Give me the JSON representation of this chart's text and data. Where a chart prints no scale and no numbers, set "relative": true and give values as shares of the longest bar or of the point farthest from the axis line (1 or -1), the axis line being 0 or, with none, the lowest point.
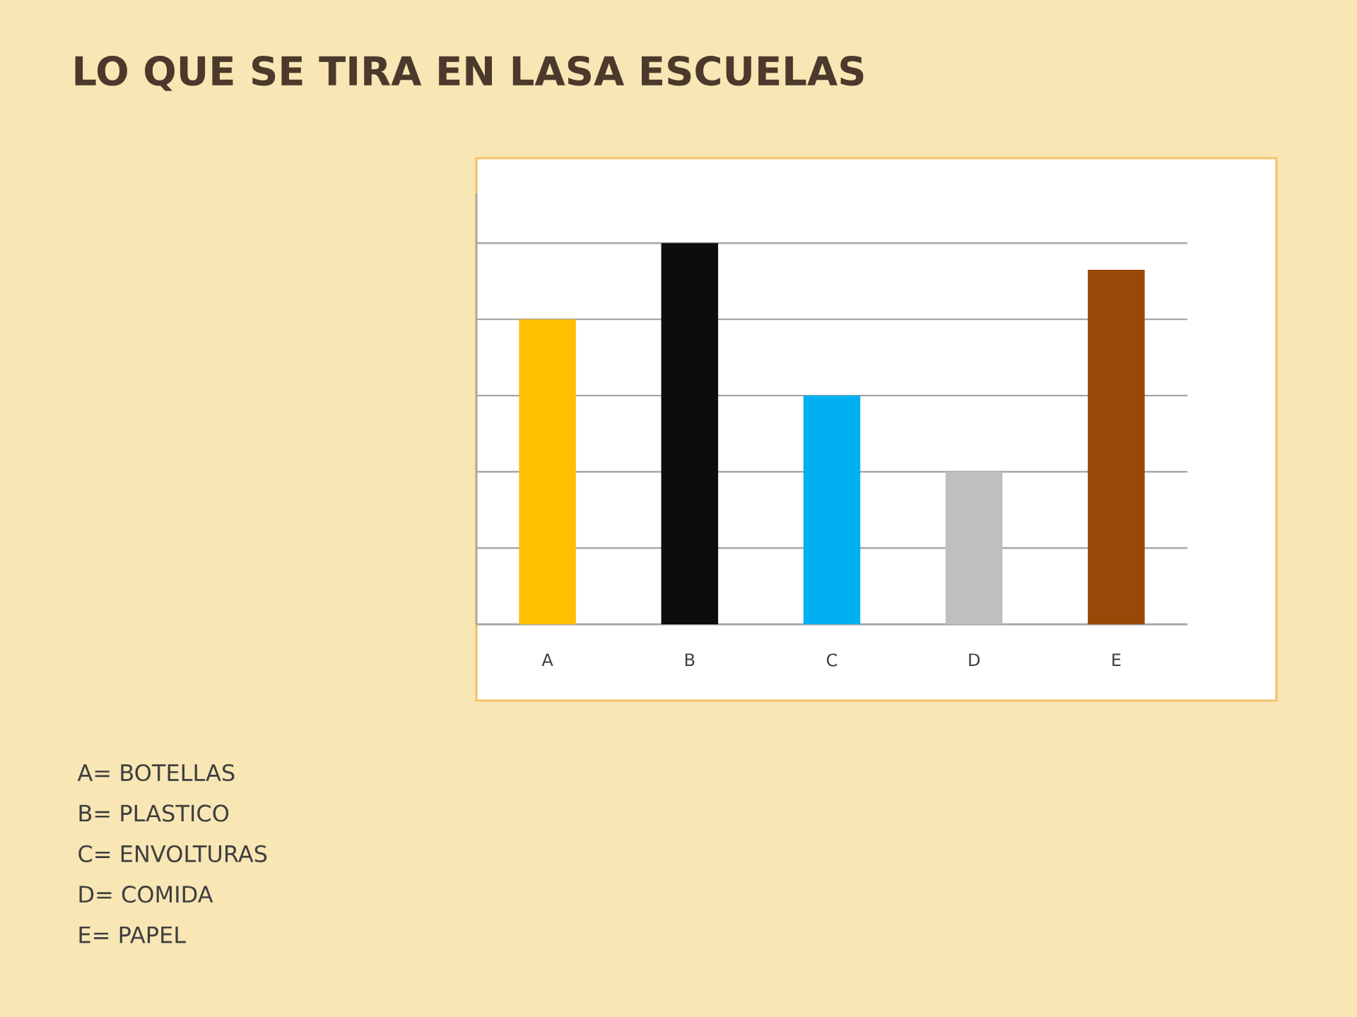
{
  "chart_data": {
    "type": "bar",
    "title": "LO QUE SE TIRA EN LASA ESCUELAS",
    "categories": [
      "A",
      "B",
      "C",
      "D",
      "E"
    ],
    "values": [
      0.8,
      1,
      0.6,
      0.4,
      0.93
    ],
    "colors": [
      "#ffc000",
      "#0d0d0d",
      "#00b0f0",
      "#bfbfbf",
      "#984807"
    ],
    "relative": true,
    "grid": "y",
    "annotations": [
      "A= BOTELLAS",
      "B= PLASTICO",
      "C= ENVOLTURAS",
      "D= COMIDA",
      "E= PAPEL"
    ]
  }
}
